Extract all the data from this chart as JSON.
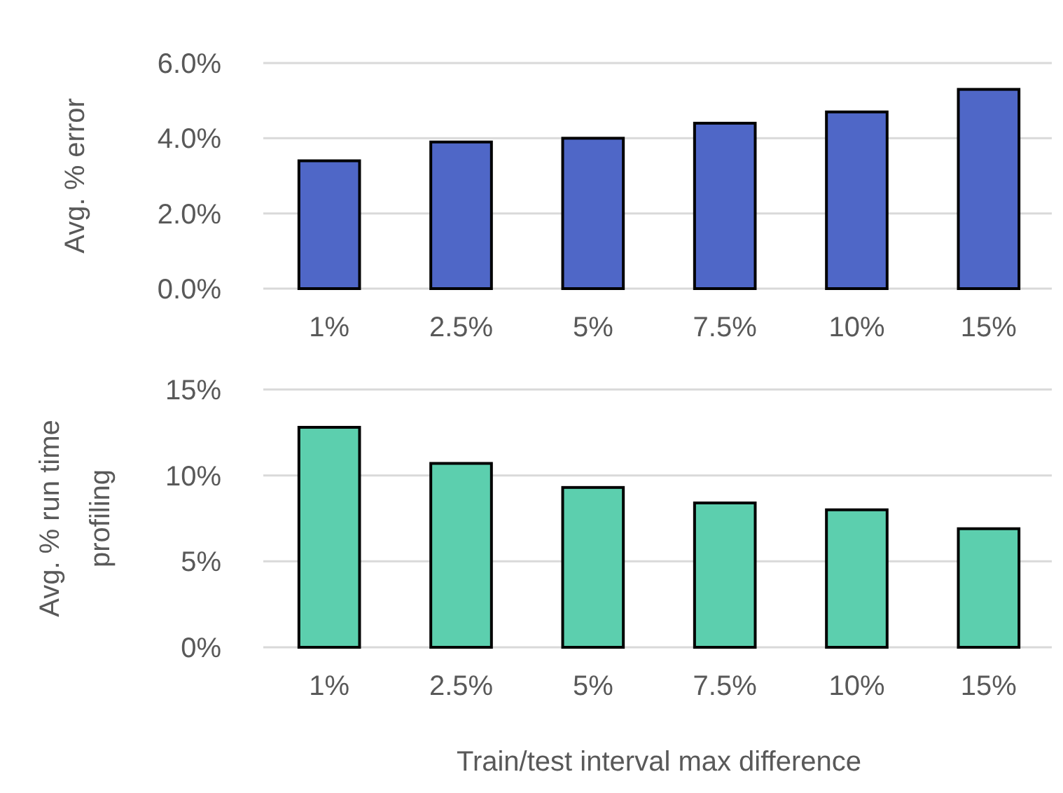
{
  "chart_data": [
    {
      "type": "bar",
      "ylabel": "Avg. % error",
      "categories": [
        "1%",
        "2.5%",
        "5%",
        "7.5%",
        "10%",
        "15%"
      ],
      "series": [
        {
          "color": "#4f67c7",
          "values": [
            3.4,
            3.9,
            4.0,
            4.4,
            4.7,
            5.3
          ]
        }
      ],
      "ylim": [
        0,
        6
      ],
      "yticks": [
        {
          "value": 0,
          "label": "0.0%"
        },
        {
          "value": 2,
          "label": "2.0%"
        },
        {
          "value": 4,
          "label": "4.0%"
        },
        {
          "value": 6,
          "label": "6.0%"
        }
      ],
      "grid": "y"
    },
    {
      "type": "bar",
      "ylabel": "Avg. % run time profiling",
      "xlabel": "Train/test interval max difference",
      "categories": [
        "1%",
        "2.5%",
        "5%",
        "7.5%",
        "10%",
        "15%"
      ],
      "series": [
        {
          "color": "#5ccfae",
          "values": [
            12.8,
            10.7,
            9.3,
            8.4,
            8.0,
            6.9
          ]
        }
      ],
      "ylim": [
        0,
        15
      ],
      "yticks": [
        {
          "value": 0,
          "label": "0%"
        },
        {
          "value": 5,
          "label": "5%"
        },
        {
          "value": 10,
          "label": "10%"
        },
        {
          "value": 15,
          "label": "15%"
        }
      ],
      "grid": "y"
    }
  ]
}
